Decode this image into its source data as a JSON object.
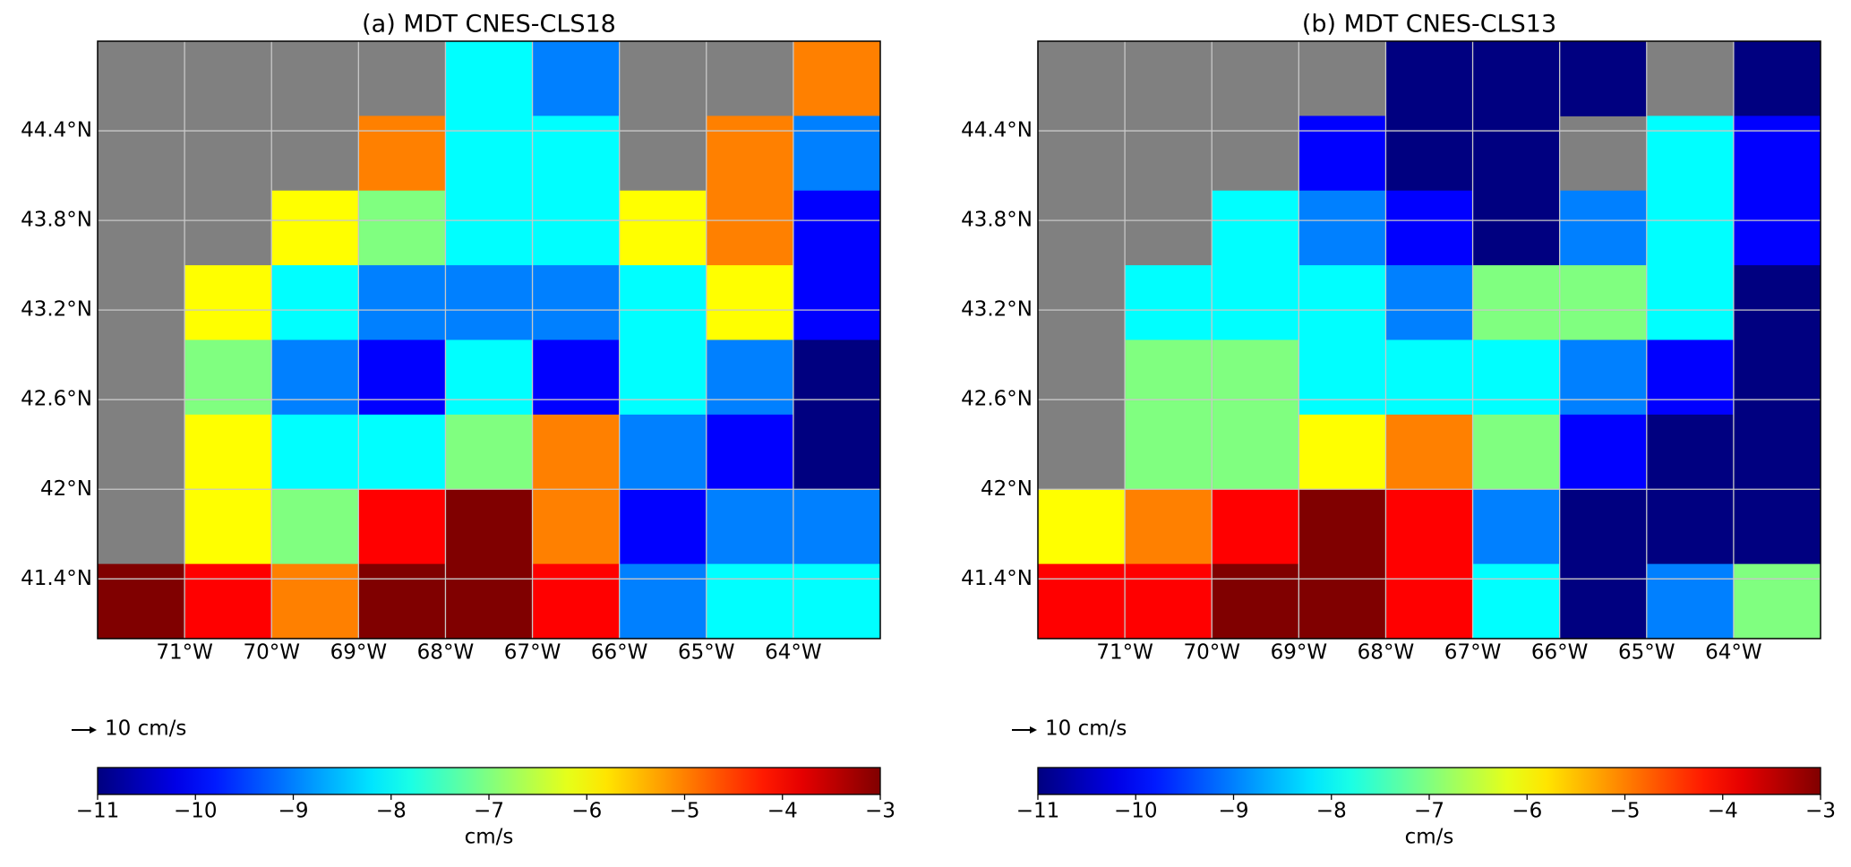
{
  "panels": [
    {
      "title": "(a) MDT CNES-CLS18",
      "lonlim": [
        -72,
        -63
      ],
      "latlim": [
        41,
        45
      ],
      "lon_ticks": [
        {
          "value": -71,
          "label": "71°W"
        },
        {
          "value": -70,
          "label": "70°W"
        },
        {
          "value": -69,
          "label": "69°W"
        },
        {
          "value": -68,
          "label": "68°W"
        },
        {
          "value": -67,
          "label": "67°W"
        },
        {
          "value": -66,
          "label": "66°W"
        },
        {
          "value": -65,
          "label": "65°W"
        },
        {
          "value": -64,
          "label": "64°W"
        }
      ],
      "lat_ticks": [
        {
          "value": 41.4,
          "label": "41.4°N"
        },
        {
          "value": 42,
          "label": "42°N"
        },
        {
          "value": 42.6,
          "label": "42.6°N"
        },
        {
          "value": 43.2,
          "label": "43.2°N"
        },
        {
          "value": 43.8,
          "label": "43.8°N"
        },
        {
          "value": 44.4,
          "label": "44.4°N"
        }
      ],
      "grid": [
        [
          null,
          null,
          null,
          null,
          -8,
          -9,
          null,
          null,
          -5
        ],
        [
          null,
          null,
          null,
          -5,
          -8,
          -8,
          null,
          -5,
          -9
        ],
        [
          null,
          null,
          -6,
          -7,
          -8,
          -8,
          -6,
          -5,
          -10
        ],
        [
          null,
          -6,
          -8,
          -9,
          -9,
          -9,
          -8,
          -6,
          -10
        ],
        [
          null,
          -7,
          -9,
          -10,
          -8,
          -10,
          -8,
          -9,
          -11
        ],
        [
          null,
          -6,
          -8,
          -8,
          -7,
          -5,
          -9,
          -10,
          -11
        ],
        [
          null,
          -6,
          -7,
          -4,
          -3,
          -5,
          -10,
          -9,
          -9
        ],
        [
          -3,
          -4,
          -5,
          -3,
          -3,
          -4,
          -9,
          -8,
          -8
        ]
      ],
      "scale_label": "10 cm/s",
      "colorbar": {
        "lim": [
          -11,
          -3
        ],
        "label": "cm/s",
        "ticks": [
          {
            "value": -11,
            "label": "−11"
          },
          {
            "value": -10,
            "label": "−10"
          },
          {
            "value": -9,
            "label": "−9"
          },
          {
            "value": -8,
            "label": "−8"
          },
          {
            "value": -7,
            "label": "−7"
          },
          {
            "value": -6,
            "label": "−6"
          },
          {
            "value": -5,
            "label": "−5"
          },
          {
            "value": -4,
            "label": "−4"
          },
          {
            "value": -3,
            "label": "−3"
          }
        ]
      }
    },
    {
      "title": "(b) MDT CNES-CLS13",
      "lonlim": [
        -72,
        -63
      ],
      "latlim": [
        41,
        45
      ],
      "lon_ticks": [
        {
          "value": -71,
          "label": "71°W"
        },
        {
          "value": -70,
          "label": "70°W"
        },
        {
          "value": -69,
          "label": "69°W"
        },
        {
          "value": -68,
          "label": "68°W"
        },
        {
          "value": -67,
          "label": "67°W"
        },
        {
          "value": -66,
          "label": "66°W"
        },
        {
          "value": -65,
          "label": "65°W"
        },
        {
          "value": -64,
          "label": "64°W"
        }
      ],
      "lat_ticks": [
        {
          "value": 41.4,
          "label": "41.4°N"
        },
        {
          "value": 42,
          "label": "42°N"
        },
        {
          "value": 42.6,
          "label": "42.6°N"
        },
        {
          "value": 43.2,
          "label": "43.2°N"
        },
        {
          "value": 43.8,
          "label": "43.8°N"
        },
        {
          "value": 44.4,
          "label": "44.4°N"
        }
      ],
      "grid": [
        [
          null,
          null,
          null,
          null,
          -11,
          -11,
          -11,
          null,
          -11
        ],
        [
          null,
          null,
          null,
          -10,
          -11,
          -11,
          null,
          -8,
          -10
        ],
        [
          null,
          null,
          -8,
          -9,
          -10,
          -11,
          -9,
          -8,
          -10
        ],
        [
          null,
          -8,
          -8,
          -8,
          -9,
          -7,
          -7,
          -8,
          -11
        ],
        [
          null,
          -7,
          -7,
          -8,
          -8,
          -8,
          -9,
          -10,
          -11
        ],
        [
          null,
          -7,
          -7,
          -6,
          -5,
          -7,
          -10,
          -11,
          -11
        ],
        [
          -6,
          -5,
          -4,
          -3,
          -4,
          -9,
          -11,
          -11,
          -11
        ],
        [
          -4,
          -4,
          -3,
          -3,
          -4,
          -8,
          -11,
          -9,
          -7
        ]
      ],
      "scale_label": "10 cm/s",
      "colorbar": {
        "lim": [
          -11,
          -3
        ],
        "label": "cm/s",
        "ticks": [
          {
            "value": -11,
            "label": "−11"
          },
          {
            "value": -10,
            "label": "−10"
          },
          {
            "value": -9,
            "label": "−9"
          },
          {
            "value": -8,
            "label": "−8"
          },
          {
            "value": -7,
            "label": "−7"
          },
          {
            "value": -6,
            "label": "−6"
          },
          {
            "value": -5,
            "label": "−5"
          },
          {
            "value": -4,
            "label": "−4"
          },
          {
            "value": -3,
            "label": "−3"
          }
        ]
      }
    }
  ]
}
